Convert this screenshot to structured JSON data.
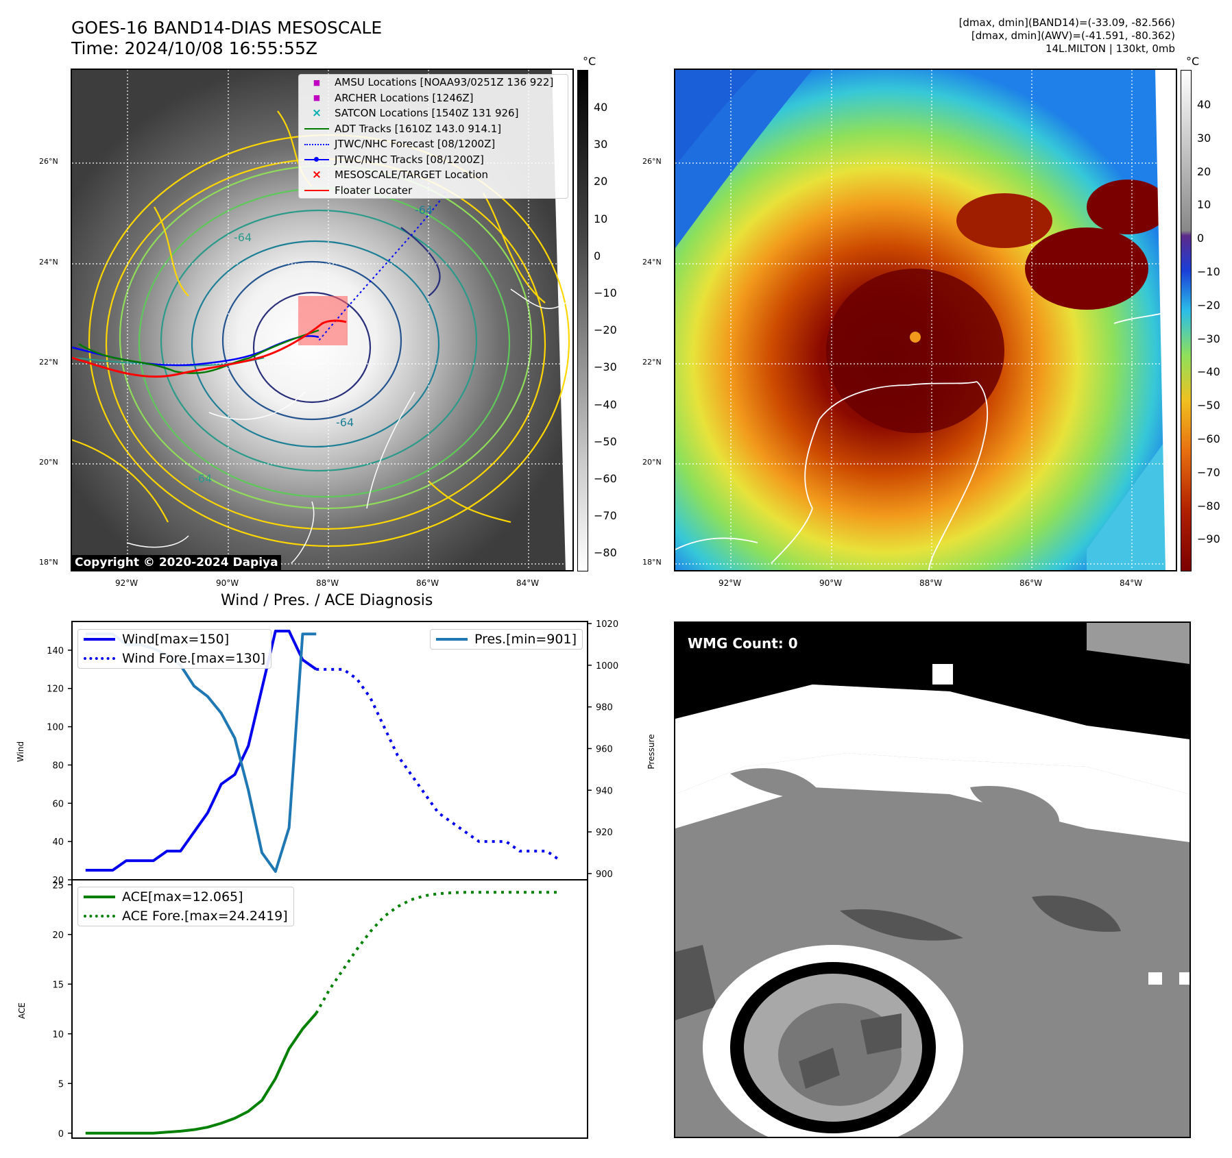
{
  "header": {
    "title_line1": "GOES-16 BAND14-DIAS MESOSCALE",
    "title_line2": "Time: 2024/10/08 16:55:55Z",
    "info_line1": "[dmax, dmin](BAND14)=(-33.09, -82.566)",
    "info_line2": "[dmax, dmin](AWV)=(-41.591, -80.362)",
    "info_line3": "14L.MILTON | 130kt, 0mb"
  },
  "map": {
    "lat_labels": [
      "26°N",
      "24°N",
      "22°N",
      "20°N",
      "18°N"
    ],
    "lon_labels": [
      "92°W",
      "90°W",
      "88°W",
      "86°W",
      "84°W"
    ],
    "copyright": "Copyright © 2020-2024 Dapiya",
    "contour_labels": [
      "-64",
      "-64",
      "-64",
      "-64"
    ],
    "legend": [
      {
        "label": "AMSU Locations [NOAA93/0251Z 136 922]",
        "symbol": "■",
        "color": "#c000c0"
      },
      {
        "label": "ARCHER Locations [1246Z]",
        "symbol": "■",
        "color": "#c000c0"
      },
      {
        "label": "SATCON Locations [1540Z 131 926]",
        "symbol": "×",
        "color": "#00b0b0"
      },
      {
        "label": "ADT Tracks [1610Z 143.0 914.1]",
        "symbol": "line",
        "color": "#007a00"
      },
      {
        "label": "JTWC/NHC Forecast [08/1200Z]",
        "symbol": "dotted",
        "color": "#0000ff"
      },
      {
        "label": "JTWC/NHC Tracks [08/1200Z]",
        "symbol": "dotline",
        "color": "#0000ff"
      },
      {
        "label": "MESOSCALE/TARGET Location",
        "symbol": "×",
        "color": "#ff0000"
      },
      {
        "label": "Floater Locater",
        "symbol": "line",
        "color": "#ff0000"
      }
    ]
  },
  "colorbar_left": {
    "unit": "°C",
    "ticks": [
      "40",
      "30",
      "20",
      "10",
      "0",
      "−10",
      "−20",
      "−30",
      "−40",
      "−50",
      "−60",
      "−70",
      "−80"
    ]
  },
  "colorbar_right": {
    "unit": "°C",
    "ticks": [
      "40",
      "30",
      "20",
      "10",
      "0",
      "−10",
      "−20",
      "−30",
      "−40",
      "−50",
      "−60",
      "−70",
      "−80",
      "−90"
    ]
  },
  "wmg": {
    "label": "WMG Count: 0"
  },
  "chart_data": [
    {
      "type": "line",
      "title": "Wind / Pres. / ACE Diagnosis",
      "ylabel": "Wind",
      "y2label": "Pressure",
      "ylim": [
        20,
        155
      ],
      "y2lim": [
        897,
        1021
      ],
      "yticks": [
        "20",
        "40",
        "60",
        "80",
        "100",
        "120",
        "140"
      ],
      "y2ticks": [
        "900",
        "920",
        "940",
        "960",
        "980",
        "1000",
        "1020"
      ],
      "series": [
        {
          "name": "Wind[max=150]",
          "color": "#0000ee",
          "style": "solid",
          "x": [
            0,
            1,
            2,
            3,
            4,
            5,
            6,
            7,
            8,
            9,
            10,
            11,
            12,
            13,
            14,
            15,
            16,
            17
          ],
          "values": [
            25,
            25,
            25,
            30,
            30,
            30,
            35,
            35,
            45,
            55,
            70,
            75,
            90,
            120,
            150,
            150,
            135,
            130
          ]
        },
        {
          "name": "Wind Fore.[max=130]",
          "color": "#0000ee",
          "style": "dotted",
          "x": [
            17,
            18,
            19,
            20,
            21,
            22,
            23,
            24,
            25,
            26,
            27,
            28,
            29,
            30,
            31,
            32,
            33,
            34,
            35
          ],
          "values": [
            130,
            130,
            130,
            125,
            115,
            100,
            85,
            75,
            65,
            55,
            50,
            45,
            40,
            40,
            40,
            35,
            35,
            35,
            30
          ]
        },
        {
          "name": "Pres.[min=901]",
          "color": "#1f77b4",
          "style": "solid",
          "axis": "right",
          "x": [
            0,
            1,
            2,
            3,
            4,
            5,
            6,
            7,
            8,
            9,
            10,
            11,
            12,
            13,
            14,
            15,
            16,
            17
          ],
          "values": [
            1015,
            1015,
            1015,
            1010,
            1010,
            1008,
            1005,
            1000,
            990,
            985,
            977,
            965,
            940,
            910,
            901,
            922,
            1015,
            1015
          ]
        }
      ]
    },
    {
      "type": "line",
      "ylabel": "ACE",
      "ylim": [
        -0.5,
        25.5
      ],
      "yticks": [
        "0",
        "5",
        "10",
        "15",
        "20",
        "25"
      ],
      "series": [
        {
          "name": "ACE[max=12.065]",
          "color": "#008000",
          "style": "solid",
          "x": [
            0,
            1,
            2,
            3,
            4,
            5,
            6,
            7,
            8,
            9,
            10,
            11,
            12,
            13,
            14,
            15,
            16,
            17
          ],
          "values": [
            0,
            0,
            0,
            0,
            0,
            0,
            0.1,
            0.2,
            0.35,
            0.6,
            1.0,
            1.5,
            2.2,
            3.3,
            5.5,
            8.5,
            10.5,
            12.065
          ]
        },
        {
          "name": "ACE Fore.[max=24.2419]",
          "color": "#008000",
          "style": "dotted",
          "x": [
            17,
            18,
            19,
            20,
            21,
            22,
            23,
            24,
            25,
            26,
            27,
            28,
            29,
            30,
            31,
            32,
            33,
            34,
            35
          ],
          "values": [
            12.065,
            14.5,
            16.5,
            18.5,
            20.3,
            21.8,
            22.8,
            23.5,
            23.9,
            24.1,
            24.2,
            24.24,
            24.24,
            24.24,
            24.24,
            24.24,
            24.24,
            24.24,
            24.24
          ]
        }
      ]
    }
  ]
}
